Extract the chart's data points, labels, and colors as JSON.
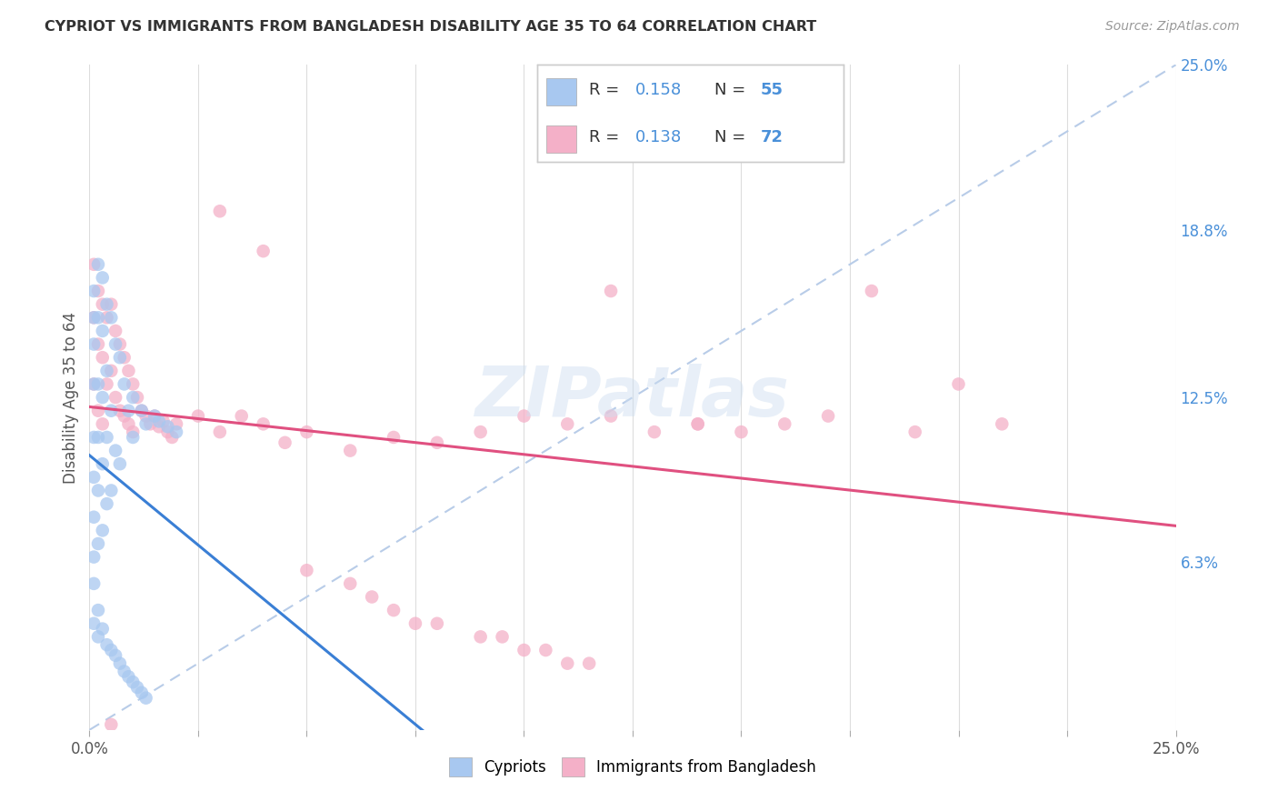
{
  "title": "CYPRIOT VS IMMIGRANTS FROM BANGLADESH DISABILITY AGE 35 TO 64 CORRELATION CHART",
  "source": "Source: ZipAtlas.com",
  "ylabel": "Disability Age 35 to 64",
  "xmin": 0.0,
  "xmax": 0.25,
  "ymin": 0.0,
  "ymax": 0.25,
  "y_tick_vals_right": [
    0.25,
    0.188,
    0.125,
    0.063
  ],
  "watermark": "ZIPatlas",
  "color_cypriot": "#a8c8f0",
  "color_bangladesh": "#f4b0c8",
  "color_line_cypriot": "#3a7fd5",
  "color_line_bangladesh": "#e05080",
  "color_dashed": "#b8cce8",
  "color_title": "#333333",
  "color_source": "#999999",
  "color_right_labels": "#4a90d9",
  "color_blue_text": "#4a90d9",
  "cypriot_x": [
    0.001,
    0.001,
    0.001,
    0.001,
    0.001,
    0.001,
    0.001,
    0.001,
    0.002,
    0.002,
    0.002,
    0.002,
    0.002,
    0.002,
    0.003,
    0.003,
    0.003,
    0.003,
    0.003,
    0.004,
    0.004,
    0.004,
    0.004,
    0.005,
    0.005,
    0.005,
    0.006,
    0.006,
    0.007,
    0.007,
    0.008,
    0.009,
    0.01,
    0.01,
    0.012,
    0.013,
    0.015,
    0.016,
    0.018,
    0.02,
    0.001,
    0.001,
    0.002,
    0.002,
    0.003,
    0.004,
    0.005,
    0.006,
    0.007,
    0.008,
    0.009,
    0.01,
    0.011,
    0.012,
    0.013
  ],
  "cypriot_y": [
    0.165,
    0.155,
    0.145,
    0.13,
    0.11,
    0.095,
    0.08,
    0.065,
    0.175,
    0.155,
    0.13,
    0.11,
    0.09,
    0.07,
    0.17,
    0.15,
    0.125,
    0.1,
    0.075,
    0.16,
    0.135,
    0.11,
    0.085,
    0.155,
    0.12,
    0.09,
    0.145,
    0.105,
    0.14,
    0.1,
    0.13,
    0.12,
    0.125,
    0.11,
    0.12,
    0.115,
    0.118,
    0.116,
    0.114,
    0.112,
    0.055,
    0.04,
    0.045,
    0.035,
    0.038,
    0.032,
    0.03,
    0.028,
    0.025,
    0.022,
    0.02,
    0.018,
    0.016,
    0.014,
    0.012
  ],
  "bangladesh_x": [
    0.001,
    0.001,
    0.001,
    0.002,
    0.002,
    0.002,
    0.003,
    0.003,
    0.003,
    0.004,
    0.004,
    0.005,
    0.005,
    0.006,
    0.006,
    0.007,
    0.007,
    0.008,
    0.008,
    0.009,
    0.009,
    0.01,
    0.01,
    0.011,
    0.012,
    0.013,
    0.014,
    0.015,
    0.016,
    0.017,
    0.018,
    0.019,
    0.02,
    0.025,
    0.03,
    0.035,
    0.04,
    0.045,
    0.05,
    0.06,
    0.07,
    0.08,
    0.09,
    0.1,
    0.11,
    0.12,
    0.13,
    0.14,
    0.15,
    0.16,
    0.17,
    0.18,
    0.19,
    0.2,
    0.21,
    0.12,
    0.14,
    0.05,
    0.06,
    0.065,
    0.07,
    0.075,
    0.08,
    0.09,
    0.095,
    0.1,
    0.105,
    0.11,
    0.115,
    0.005,
    0.04,
    0.03
  ],
  "bangladesh_y": [
    0.175,
    0.155,
    0.13,
    0.165,
    0.145,
    0.12,
    0.16,
    0.14,
    0.115,
    0.155,
    0.13,
    0.16,
    0.135,
    0.15,
    0.125,
    0.145,
    0.12,
    0.14,
    0.118,
    0.135,
    0.115,
    0.13,
    0.112,
    0.125,
    0.12,
    0.118,
    0.115,
    0.118,
    0.114,
    0.116,
    0.112,
    0.11,
    0.115,
    0.118,
    0.112,
    0.118,
    0.115,
    0.108,
    0.112,
    0.105,
    0.11,
    0.108,
    0.112,
    0.118,
    0.115,
    0.165,
    0.112,
    0.115,
    0.112,
    0.115,
    0.118,
    0.165,
    0.112,
    0.13,
    0.115,
    0.118,
    0.115,
    0.06,
    0.055,
    0.05,
    0.045,
    0.04,
    0.04,
    0.035,
    0.035,
    0.03,
    0.03,
    0.025,
    0.025,
    0.002,
    0.18,
    0.195
  ]
}
